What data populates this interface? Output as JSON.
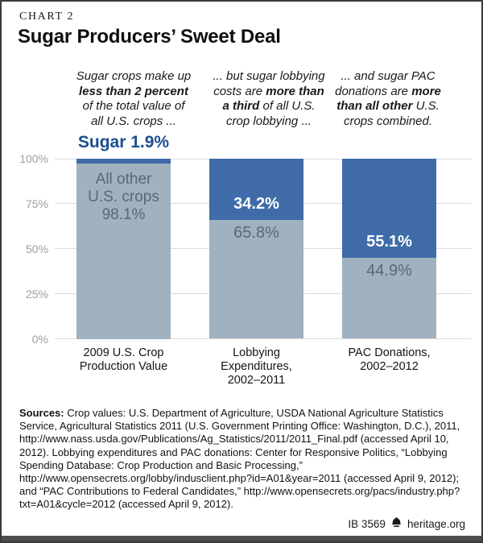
{
  "kicker": "CHART 2",
  "title": "Sugar Producers’ Sweet Deal",
  "annotations": [
    {
      "lines": [
        [
          {
            "t": "Sugar crops make up"
          }
        ],
        [
          {
            "t": "less than 2 percent",
            "b": true
          }
        ],
        [
          {
            "t": "of the total value of"
          }
        ],
        [
          {
            "t": "all U.S. crops ..."
          }
        ]
      ]
    },
    {
      "lines": [
        [
          {
            "t": "... but sugar lobbying"
          }
        ],
        [
          {
            "t": "costs are "
          },
          {
            "t": "more than",
            "b": true
          }
        ],
        [
          {
            "t": "a third",
            "b": true
          },
          {
            "t": " of all U.S."
          }
        ],
        [
          {
            "t": "crop lobbying ..."
          }
        ]
      ]
    },
    {
      "lines": [
        [
          {
            "t": "... and sugar PAC"
          }
        ],
        [
          {
            "t": "donations are "
          },
          {
            "t": "more",
            "b": true
          }
        ],
        [
          {
            "t": "than all other",
            "b": true
          },
          {
            "t": " U.S."
          }
        ],
        [
          {
            "t": "crops combined."
          }
        ]
      ]
    }
  ],
  "chart_data": {
    "type": "bar",
    "stacked": true,
    "unit": "%",
    "categories": [
      "2009 U.S. Crop Production Value",
      "Lobbying Expenditures, 2002–2011",
      "PAC Donations, 2002–2012"
    ],
    "category_lines": [
      [
        "2009 U.S. Crop",
        "Production Value"
      ],
      [
        "Lobbying",
        "Expenditures,",
        "2002–2011"
      ],
      [
        "PAC Donations,",
        "2002–2012"
      ]
    ],
    "series": [
      {
        "name": "Sugar",
        "values": [
          1.9,
          34.2,
          55.1
        ]
      },
      {
        "name": "All other U.S. crops",
        "values": [
          98.1,
          65.8,
          44.9
        ]
      }
    ],
    "ylim": [
      0,
      100
    ],
    "y_ticks": [
      "100%",
      "75%",
      "50%",
      "25%",
      "0%"
    ],
    "y_tick_values": [
      100,
      75,
      50,
      25,
      0
    ],
    "grid": true,
    "legend_position": "none",
    "sugar_callout": "Sugar 1.9%",
    "bar1_inner_label_lines": [
      "All other",
      "U.S. crops",
      "98.1%"
    ],
    "value_labels": {
      "sugar": [
        "",
        "34.2%",
        "55.1%"
      ],
      "other": [
        "98.1%",
        "65.8%",
        "44.9%"
      ]
    }
  },
  "sources": {
    "label": "Sources:",
    "text": "Crop values: U.S. Department of Agriculture, USDA National Agriculture Statistics Service, Agricultural Statistics 2011 (U.S. Government Printing Office: Washington, D.C.), 2011, http://www.nass.usda.gov/Publications/Ag_Statistics/2011/2011_Final.pdf (accessed April 10, 2012). Lobbying expenditures and PAC donations: Center for Responsive Politics, “Lobbying Spending Database: Crop Production and Basic Processing,” http://www.opensecrets.org/lobby/indusclient.php?id=A01&year=2011 (accessed April 9, 2012); and “PAC Contributions to Federal Candidates,” http://www.opensecrets.org/pacs/industry.php?txt=A01&cycle=2012 (accessed April 9, 2012)."
  },
  "footer": {
    "id": "IB 3569",
    "site": "heritage.org",
    "logo": "liberty-bell-icon"
  },
  "colors": {
    "bar_blue": "#3f6ca8",
    "bar_gray": "#a0b1c0",
    "callout_blue": "#1b4e90",
    "inbar_text": "#5c6873",
    "axis_text": "#9aa0a6",
    "grid": "#dadbdd",
    "footer_bar": "#4c4d4f",
    "border": "#3a3a3c"
  }
}
